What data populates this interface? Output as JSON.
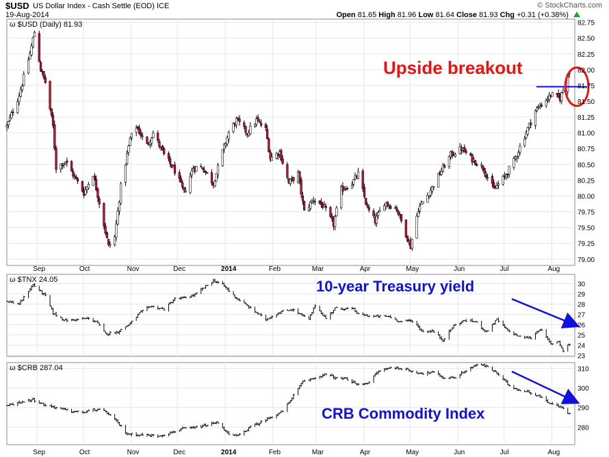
{
  "header": {
    "symbol": "$USD",
    "name": "US Dollar Index - Cash Settle (EOD)",
    "exchange": "ICE",
    "date": "19-Aug-2014",
    "brand": "© StockCharts.com",
    "open_label": "Open",
    "open": "81.65",
    "high_label": "High",
    "high": "81.96",
    "low_label": "Low",
    "low": "81.64",
    "close_label": "Close",
    "close": "81.93",
    "chg_label": "Chg",
    "chg": "+0.31 (+0.38%)"
  },
  "annotations": {
    "breakout": "Upside breakout",
    "treasury": "10-year Treasury yield",
    "crb": "CRB Commodity Index",
    "colors": {
      "red": "#ee1111",
      "blue": "#1111dd"
    }
  },
  "x_axis": {
    "months": [
      "Sep",
      "Oct",
      "Nov",
      "Dec",
      "2014",
      "Feb",
      "Mar",
      "Apr",
      "May",
      "Jun",
      "Jul",
      "Aug"
    ],
    "bold": "2014"
  },
  "chart_data": [
    {
      "type": "ohlc",
      "legend": "$USD (Daily) 81.93",
      "ylim": [
        78.9,
        82.8
      ],
      "yticks": [
        "79.00",
        "79.25",
        "79.50",
        "79.75",
        "80.00",
        "80.25",
        "80.50",
        "80.75",
        "81.00",
        "81.25",
        "81.50",
        "81.75",
        "82.00",
        "82.25",
        "82.50",
        "82.75"
      ],
      "ytick_values": [
        79.0,
        79.25,
        79.5,
        79.75,
        80.0,
        80.25,
        80.5,
        80.75,
        81.0,
        81.25,
        81.5,
        81.75,
        82.0,
        82.25,
        82.5,
        82.75
      ],
      "resistance_line": 81.73,
      "up_color": "#000000",
      "down_color": "#cc1133",
      "close_path": [
        {
          "x": "2013-08-19",
          "y": 81.1
        },
        {
          "x": "2013-08-27",
          "y": 81.6
        },
        {
          "x": "2013-09-03",
          "y": 82.25
        },
        {
          "x": "2013-09-06",
          "y": 82.6
        },
        {
          "x": "2013-09-10",
          "y": 82.0
        },
        {
          "x": "2013-09-13",
          "y": 81.8
        },
        {
          "x": "2013-09-18",
          "y": 81.1
        },
        {
          "x": "2013-09-20",
          "y": 80.45
        },
        {
          "x": "2013-09-26",
          "y": 80.55
        },
        {
          "x": "2013-10-02",
          "y": 80.3
        },
        {
          "x": "2013-10-08",
          "y": 80.05
        },
        {
          "x": "2013-10-14",
          "y": 80.35
        },
        {
          "x": "2013-10-18",
          "y": 79.9
        },
        {
          "x": "2013-10-24",
          "y": 79.2
        },
        {
          "x": "2013-10-28",
          "y": 79.35
        },
        {
          "x": "2013-11-01",
          "y": 80.15
        },
        {
          "x": "2013-11-07",
          "y": 80.9
        },
        {
          "x": "2013-11-11",
          "y": 81.1
        },
        {
          "x": "2013-11-18",
          "y": 80.8
        },
        {
          "x": "2013-11-22",
          "y": 81.0
        },
        {
          "x": "2013-11-29",
          "y": 80.65
        },
        {
          "x": "2013-12-06",
          "y": 80.4
        },
        {
          "x": "2013-12-12",
          "y": 80.05
        },
        {
          "x": "2013-12-18",
          "y": 80.45
        },
        {
          "x": "2013-12-24",
          "y": 80.45
        },
        {
          "x": "2013-12-31",
          "y": 80.2
        },
        {
          "x": "2014-01-06",
          "y": 80.7
        },
        {
          "x": "2014-01-10",
          "y": 81.0
        },
        {
          "x": "2014-01-15",
          "y": 81.2
        },
        {
          "x": "2014-01-22",
          "y": 81.0
        },
        {
          "x": "2014-01-28",
          "y": 81.2
        },
        {
          "x": "2014-02-03",
          "y": 81.05
        },
        {
          "x": "2014-02-06",
          "y": 80.6
        },
        {
          "x": "2014-02-12",
          "y": 80.7
        },
        {
          "x": "2014-02-18",
          "y": 80.2
        },
        {
          "x": "2014-02-24",
          "y": 80.35
        },
        {
          "x": "2014-02-28",
          "y": 79.75
        },
        {
          "x": "2014-03-06",
          "y": 79.95
        },
        {
          "x": "2014-03-12",
          "y": 79.85
        },
        {
          "x": "2014-03-19",
          "y": 79.55
        },
        {
          "x": "2014-03-24",
          "y": 80.1
        },
        {
          "x": "2014-03-31",
          "y": 80.2
        },
        {
          "x": "2014-04-04",
          "y": 80.35
        },
        {
          "x": "2014-04-10",
          "y": 79.8
        },
        {
          "x": "2014-04-15",
          "y": 79.6
        },
        {
          "x": "2014-04-21",
          "y": 79.9
        },
        {
          "x": "2014-04-29",
          "y": 79.8
        },
        {
          "x": "2014-05-05",
          "y": 79.4
        },
        {
          "x": "2014-05-08",
          "y": 79.2
        },
        {
          "x": "2014-05-13",
          "y": 79.8
        },
        {
          "x": "2014-05-20",
          "y": 80.05
        },
        {
          "x": "2014-05-28",
          "y": 80.4
        },
        {
          "x": "2014-06-03",
          "y": 80.65
        },
        {
          "x": "2014-06-10",
          "y": 80.75
        },
        {
          "x": "2014-06-16",
          "y": 80.6
        },
        {
          "x": "2014-06-24",
          "y": 80.45
        },
        {
          "x": "2014-07-01",
          "y": 80.1
        },
        {
          "x": "2014-07-08",
          "y": 80.3
        },
        {
          "x": "2014-07-14",
          "y": 80.55
        },
        {
          "x": "2014-07-21",
          "y": 80.95
        },
        {
          "x": "2014-07-28",
          "y": 81.35
        },
        {
          "x": "2014-08-01",
          "y": 81.45
        },
        {
          "x": "2014-08-07",
          "y": 81.6
        },
        {
          "x": "2014-08-13",
          "y": 81.55
        },
        {
          "x": "2014-08-19",
          "y": 81.93
        }
      ]
    },
    {
      "type": "ohlc",
      "legend": "$TNX 24.05",
      "ylim": [
        22.9,
        30.9
      ],
      "yticks": [
        "23",
        "24",
        "25",
        "26",
        "27",
        "28",
        "29",
        "30"
      ],
      "ytick_values": [
        23,
        24,
        25,
        26,
        27,
        28,
        29,
        30
      ],
      "close_path": [
        {
          "x": "2013-08-19",
          "y": 28.3
        },
        {
          "x": "2013-08-27",
          "y": 28.0
        },
        {
          "x": "2013-09-05",
          "y": 29.9
        },
        {
          "x": "2013-09-13",
          "y": 28.8
        },
        {
          "x": "2013-09-18",
          "y": 27.1
        },
        {
          "x": "2013-09-26",
          "y": 26.4
        },
        {
          "x": "2013-10-04",
          "y": 26.5
        },
        {
          "x": "2013-10-10",
          "y": 26.6
        },
        {
          "x": "2013-10-16",
          "y": 26.3
        },
        {
          "x": "2013-10-22",
          "y": 25.1
        },
        {
          "x": "2013-10-30",
          "y": 25.3
        },
        {
          "x": "2013-11-07",
          "y": 26.1
        },
        {
          "x": "2013-11-13",
          "y": 27.1
        },
        {
          "x": "2013-11-20",
          "y": 27.8
        },
        {
          "x": "2013-11-29",
          "y": 27.5
        },
        {
          "x": "2013-12-06",
          "y": 28.5
        },
        {
          "x": "2013-12-12",
          "y": 28.6
        },
        {
          "x": "2013-12-19",
          "y": 28.9
        },
        {
          "x": "2013-12-31",
          "y": 30.3
        },
        {
          "x": "2014-01-06",
          "y": 29.9
        },
        {
          "x": "2014-01-14",
          "y": 28.7
        },
        {
          "x": "2014-01-24",
          "y": 27.6
        },
        {
          "x": "2014-02-03",
          "y": 26.5
        },
        {
          "x": "2014-02-12",
          "y": 27.2
        },
        {
          "x": "2014-02-20",
          "y": 27.5
        },
        {
          "x": "2014-03-03",
          "y": 26.5
        },
        {
          "x": "2014-03-07",
          "y": 27.9
        },
        {
          "x": "2014-03-14",
          "y": 26.6
        },
        {
          "x": "2014-03-20",
          "y": 27.6
        },
        {
          "x": "2014-04-01",
          "y": 27.5
        },
        {
          "x": "2014-04-04",
          "y": 27.0
        },
        {
          "x": "2014-04-14",
          "y": 26.8
        },
        {
          "x": "2014-04-24",
          "y": 26.8
        },
        {
          "x": "2014-05-01",
          "y": 26.3
        },
        {
          "x": "2014-05-09",
          "y": 26.4
        },
        {
          "x": "2014-05-16",
          "y": 25.3
        },
        {
          "x": "2014-05-22",
          "y": 25.4
        },
        {
          "x": "2014-05-29",
          "y": 24.5
        },
        {
          "x": "2014-06-05",
          "y": 25.9
        },
        {
          "x": "2014-06-12",
          "y": 26.4
        },
        {
          "x": "2014-06-19",
          "y": 26.3
        },
        {
          "x": "2014-06-26",
          "y": 25.3
        },
        {
          "x": "2014-07-03",
          "y": 26.5
        },
        {
          "x": "2014-07-10",
          "y": 25.4
        },
        {
          "x": "2014-07-18",
          "y": 24.8
        },
        {
          "x": "2014-07-25",
          "y": 24.7
        },
        {
          "x": "2014-07-31",
          "y": 25.6
        },
        {
          "x": "2014-08-07",
          "y": 24.1
        },
        {
          "x": "2014-08-12",
          "y": 24.4
        },
        {
          "x": "2014-08-15",
          "y": 23.4
        },
        {
          "x": "2014-08-19",
          "y": 24.05
        }
      ]
    },
    {
      "type": "ohlc",
      "legend": "$CRB 287.04",
      "ylim": [
        271,
        313
      ],
      "yticks": [
        "280",
        "290",
        "300",
        "310"
      ],
      "ytick_values": [
        280,
        290,
        300,
        310
      ],
      "close_path": [
        {
          "x": "2013-08-19",
          "y": 291.0
        },
        {
          "x": "2013-08-29",
          "y": 293.0
        },
        {
          "x": "2013-09-05",
          "y": 294.2
        },
        {
          "x": "2013-09-12",
          "y": 291.5
        },
        {
          "x": "2013-09-20",
          "y": 290.0
        },
        {
          "x": "2013-09-30",
          "y": 288.0
        },
        {
          "x": "2013-10-08",
          "y": 287.5
        },
        {
          "x": "2013-10-15",
          "y": 289.0
        },
        {
          "x": "2013-10-22",
          "y": 288.0
        },
        {
          "x": "2013-10-29",
          "y": 283.0
        },
        {
          "x": "2013-11-05",
          "y": 276.5
        },
        {
          "x": "2013-11-15",
          "y": 276.0
        },
        {
          "x": "2013-11-25",
          "y": 275.5
        },
        {
          "x": "2013-12-03",
          "y": 277.0
        },
        {
          "x": "2013-12-10",
          "y": 279.0
        },
        {
          "x": "2013-12-18",
          "y": 279.5
        },
        {
          "x": "2013-12-27",
          "y": 281.0
        },
        {
          "x": "2014-01-03",
          "y": 282.5
        },
        {
          "x": "2014-01-10",
          "y": 276.0
        },
        {
          "x": "2014-01-16",
          "y": 275.5
        },
        {
          "x": "2014-01-24",
          "y": 280.0
        },
        {
          "x": "2014-01-31",
          "y": 282.5
        },
        {
          "x": "2014-02-07",
          "y": 285.5
        },
        {
          "x": "2014-02-14",
          "y": 288.0
        },
        {
          "x": "2014-02-20",
          "y": 295.0
        },
        {
          "x": "2014-02-27",
          "y": 303.0
        },
        {
          "x": "2014-03-06",
          "y": 305.0
        },
        {
          "x": "2014-03-14",
          "y": 307.0
        },
        {
          "x": "2014-03-21",
          "y": 305.0
        },
        {
          "x": "2014-03-28",
          "y": 304.5
        },
        {
          "x": "2014-04-04",
          "y": 301.5
        },
        {
          "x": "2014-04-11",
          "y": 303.0
        },
        {
          "x": "2014-04-17",
          "y": 308.5
        },
        {
          "x": "2014-04-25",
          "y": 310.5
        },
        {
          "x": "2014-05-02",
          "y": 310.0
        },
        {
          "x": "2014-05-09",
          "y": 308.5
        },
        {
          "x": "2014-05-16",
          "y": 307.5
        },
        {
          "x": "2014-05-23",
          "y": 308.0
        },
        {
          "x": "2014-05-30",
          "y": 305.0
        },
        {
          "x": "2014-06-06",
          "y": 305.5
        },
        {
          "x": "2014-06-13",
          "y": 309.0
        },
        {
          "x": "2014-06-20",
          "y": 312.0
        },
        {
          "x": "2014-06-27",
          "y": 311.0
        },
        {
          "x": "2014-07-03",
          "y": 307.5
        },
        {
          "x": "2014-07-10",
          "y": 302.0
        },
        {
          "x": "2014-07-17",
          "y": 299.0
        },
        {
          "x": "2014-07-24",
          "y": 298.0
        },
        {
          "x": "2014-07-31",
          "y": 295.5
        },
        {
          "x": "2014-08-07",
          "y": 292.0
        },
        {
          "x": "2014-08-14",
          "y": 290.0
        },
        {
          "x": "2014-08-19",
          "y": 287.04
        }
      ]
    }
  ]
}
